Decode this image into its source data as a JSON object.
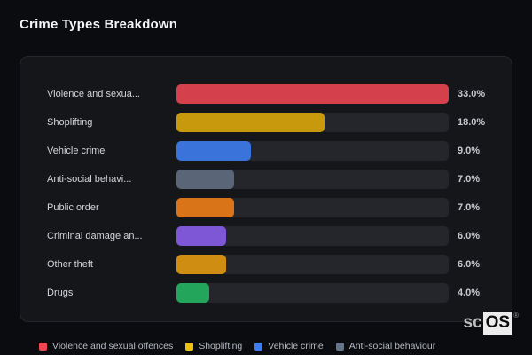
{
  "chart_data": {
    "type": "bar",
    "orientation": "horizontal",
    "title": "Crime Types Breakdown",
    "categories": [
      "Violence and sexua...",
      "Shoplifting",
      "Vehicle crime",
      "Anti-social behavi...",
      "Public order",
      "Criminal damage an...",
      "Other theft",
      "Drugs"
    ],
    "values": [
      33.0,
      18.0,
      9.0,
      7.0,
      7.0,
      6.0,
      6.0,
      4.0
    ],
    "value_labels": [
      "33.0%",
      "18.0%",
      "9.0%",
      "7.0%",
      "7.0%",
      "6.0%",
      "6.0%",
      "4.0%"
    ],
    "bar_colors": [
      "#d4414c",
      "#c9990d",
      "#3a74da",
      "#5a6577",
      "#d97418",
      "#7d57d6",
      "#cf8e12",
      "#23a55b"
    ],
    "xlim": [
      0,
      33
    ],
    "grid": false,
    "track_color": "#24262c",
    "legend_position": "bottom",
    "legend": [
      {
        "label": "Violence and sexual offences",
        "color": "#ef4751"
      },
      {
        "label": "Shoplifting",
        "color": "#ecc211"
      },
      {
        "label": "Vehicle crime",
        "color": "#3e7df2"
      },
      {
        "label": "Anti-social behaviour",
        "color": "#64748b"
      }
    ]
  },
  "watermark": {
    "prefix": "sc",
    "boxed": "OS",
    "reg": "®"
  }
}
